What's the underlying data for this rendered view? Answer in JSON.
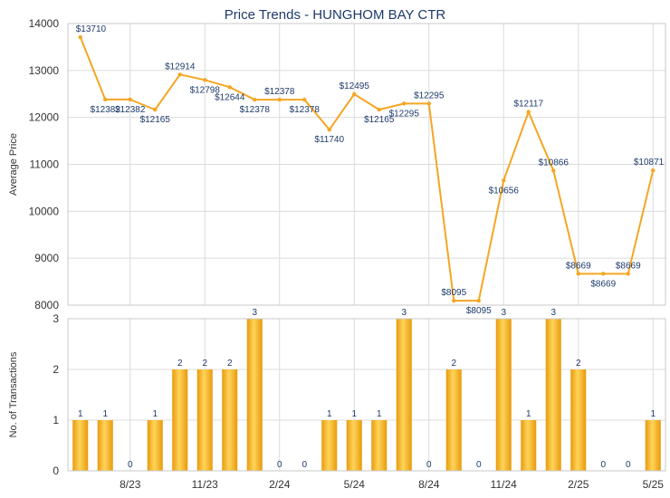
{
  "chart_data": [
    {
      "type": "line",
      "title": "Price Trends - HUNGHOM BAY CTR",
      "ylabel": "Average Price",
      "ylim": [
        8000,
        14000
      ],
      "yticks": [
        "8000",
        "9000",
        "10000",
        "11000",
        "12000",
        "13000",
        "14000"
      ],
      "color": "#f5a623",
      "points": [
        {
          "x": 0,
          "y": 13710,
          "label": "$13710"
        },
        {
          "x": 1,
          "y": 12382,
          "label": "$12382"
        },
        {
          "x": 2,
          "y": 12382,
          "label": "$12382"
        },
        {
          "x": 3,
          "y": 12165,
          "label": "$12165"
        },
        {
          "x": 4,
          "y": 12914,
          "label": "$12914"
        },
        {
          "x": 5,
          "y": 12798,
          "label": "$12798"
        },
        {
          "x": 6,
          "y": 12644,
          "label": "$12644"
        },
        {
          "x": 7,
          "y": 12378,
          "label": "$12378"
        },
        {
          "x": 8,
          "y": 12378,
          "label": "$12378"
        },
        {
          "x": 9,
          "y": 12378,
          "label": "$12378"
        },
        {
          "x": 10,
          "y": 11740,
          "label": "$11740"
        },
        {
          "x": 11,
          "y": 12495,
          "label": "$12495"
        },
        {
          "x": 12,
          "y": 12165,
          "label": "$12165"
        },
        {
          "x": 13,
          "y": 12295,
          "label": "$12295"
        },
        {
          "x": 14,
          "y": 12295,
          "label": "$12295"
        },
        {
          "x": 15,
          "y": 8095,
          "label": "$8095"
        },
        {
          "x": 16,
          "y": 8095,
          "label": "$8095"
        },
        {
          "x": 17,
          "y": 10656,
          "label": "$10656"
        },
        {
          "x": 18,
          "y": 12117,
          "label": "$12117"
        },
        {
          "x": 19,
          "y": 10866,
          "label": "$10866"
        },
        {
          "x": 20,
          "y": 8669,
          "label": "$8669"
        },
        {
          "x": 21,
          "y": 8669,
          "label": "$8669"
        },
        {
          "x": 22,
          "y": 8669,
          "label": "$8669"
        },
        {
          "x": 23,
          "y": 10871,
          "label": "$10871"
        }
      ]
    },
    {
      "type": "bar",
      "ylabel": "No. of Transactions",
      "ylim": [
        0,
        3
      ],
      "yticks": [
        "0",
        "1",
        "2",
        "3"
      ],
      "color": "#f5a623",
      "xticks": [
        {
          "index": 2.5,
          "label": "8/23"
        },
        {
          "index": 5.5,
          "label": "11/23"
        },
        {
          "index": 8.5,
          "label": "2/24"
        },
        {
          "index": 11.5,
          "label": "5/24"
        },
        {
          "index": 14.5,
          "label": "8/24"
        },
        {
          "index": 17.5,
          "label": "11/24"
        },
        {
          "index": 20.5,
          "label": "2/25"
        },
        {
          "index": 23.5,
          "label": "5/25"
        }
      ],
      "values": [
        1,
        1,
        0,
        1,
        2,
        2,
        2,
        3,
        0,
        0,
        1,
        1,
        1,
        3,
        0,
        2,
        0,
        3,
        1,
        3,
        2,
        0,
        0,
        1
      ]
    }
  ]
}
